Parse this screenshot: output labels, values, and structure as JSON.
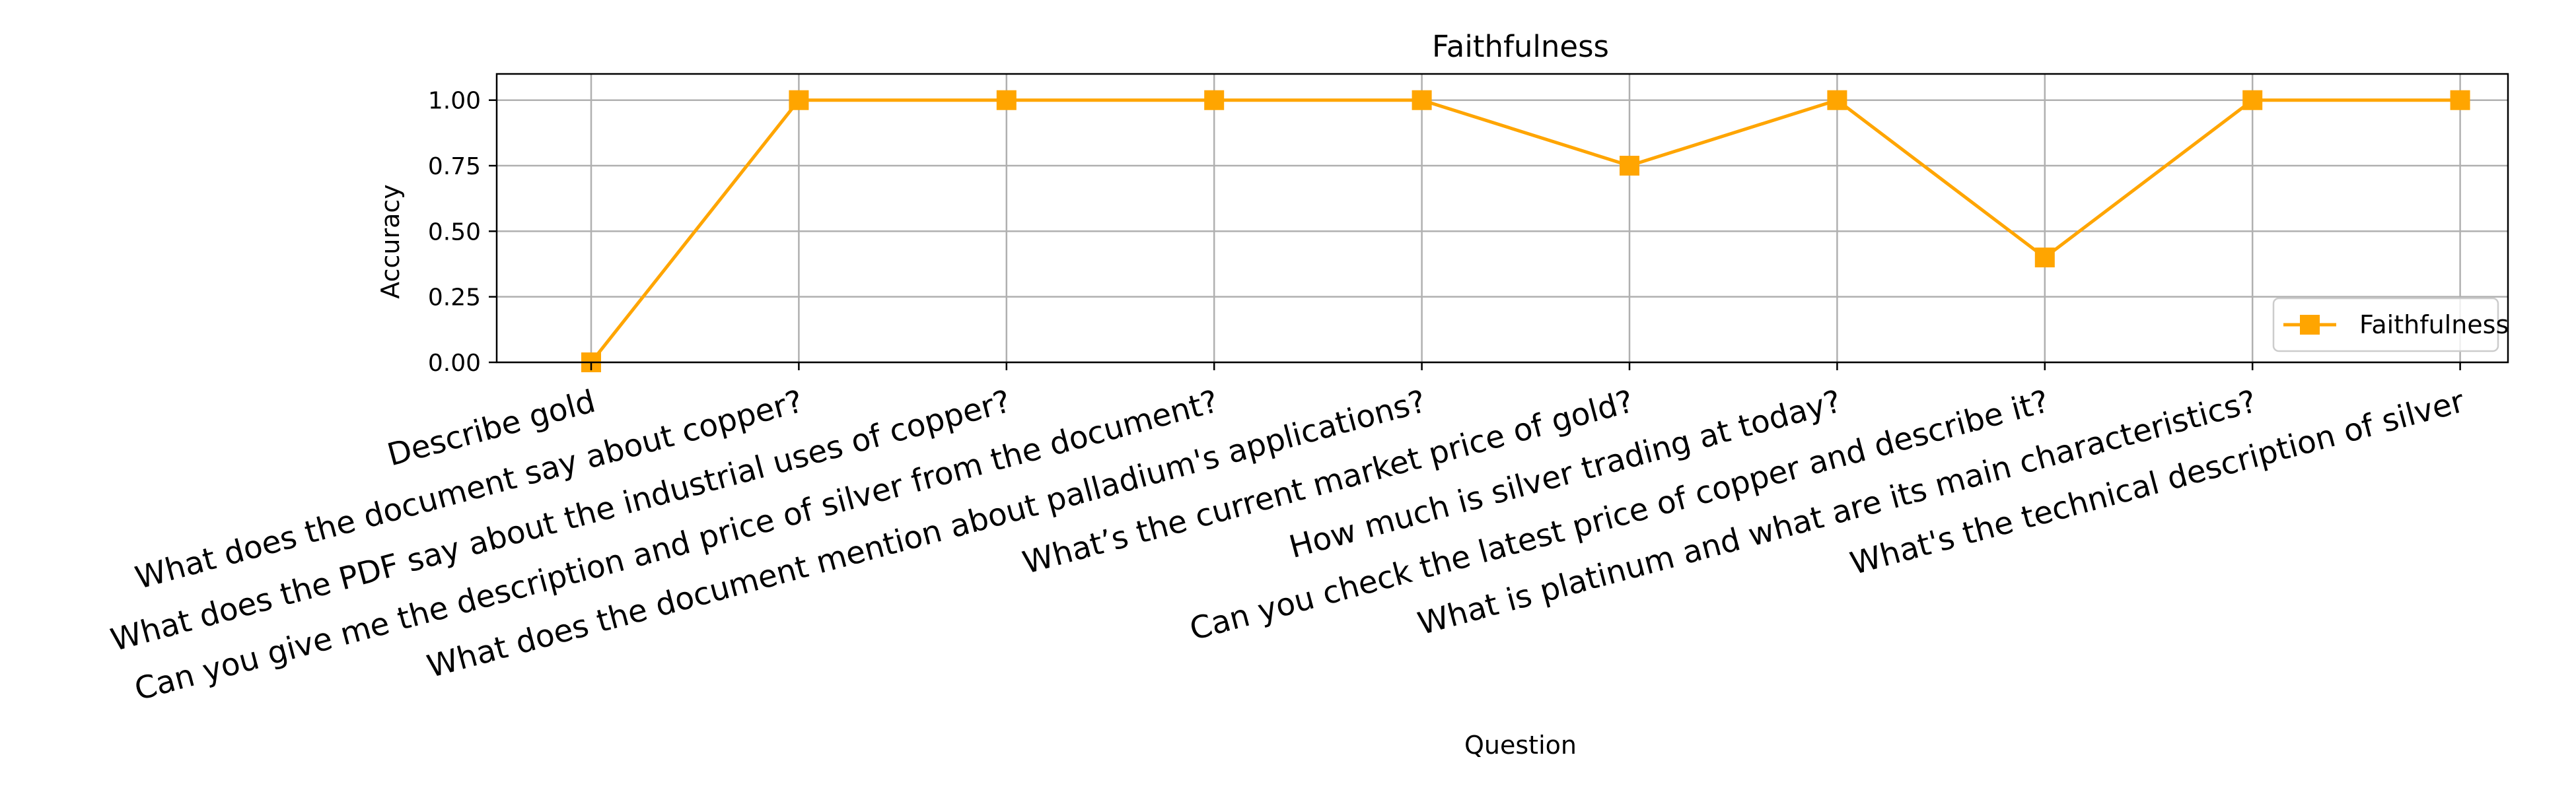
{
  "chart_data": {
    "type": "line",
    "title": "Faithfulness",
    "xlabel": "Question",
    "ylabel": "Accuracy",
    "categories": [
      "Describe gold",
      "What does the document say about copper?",
      "What does the PDF say about the industrial uses of copper?",
      "Can you give me the description and price of silver from the document?",
      "What does the document mention about palladium's applications?",
      "What’s the current market price of gold?",
      "How much is silver trading at today?",
      "Can you check the latest price of copper and describe it?",
      "What is platinum and what are its main characteristics?",
      "What's the technical description of silver"
    ],
    "series": [
      {
        "name": "Faithfulness",
        "values": [
          0.0,
          1.0,
          1.0,
          1.0,
          1.0,
          0.75,
          1.0,
          0.4,
          1.0,
          1.0
        ],
        "color": "#ffa500",
        "marker": "square"
      }
    ],
    "ylim": [
      0,
      1.1
    ],
    "yticks": [
      0.0,
      0.25,
      0.5,
      0.75,
      1.0
    ],
    "ytick_labels": [
      "0.00",
      "0.25",
      "0.50",
      "0.75",
      "1.00"
    ],
    "grid": true,
    "legend_position": "lower-right"
  }
}
